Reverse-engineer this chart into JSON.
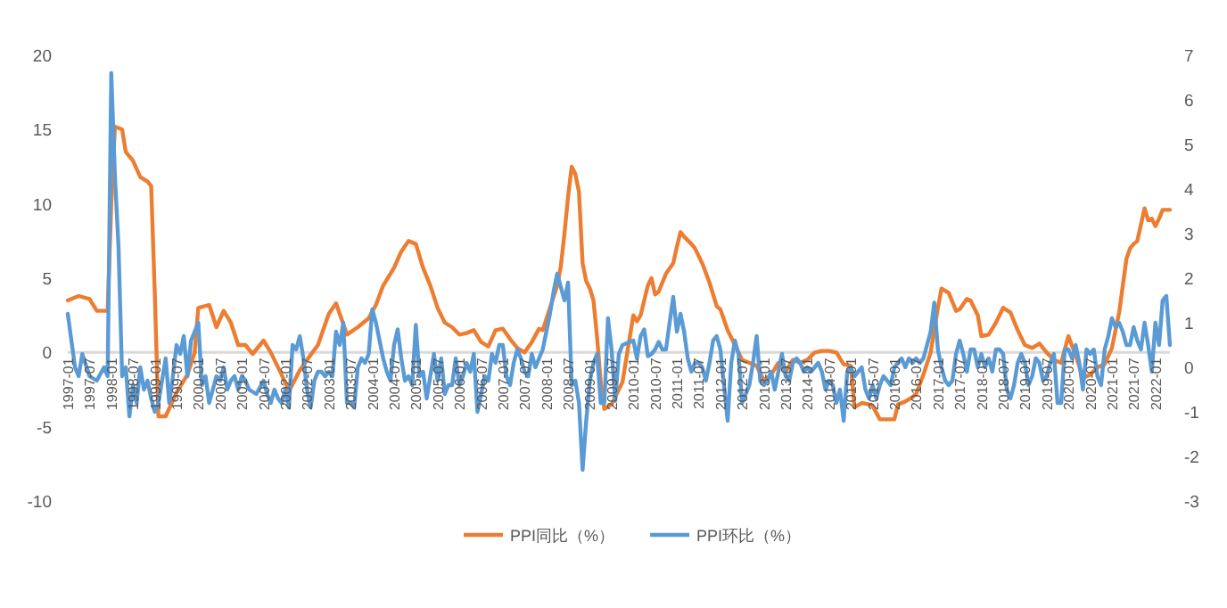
{
  "chart_data": {
    "type": "line",
    "xlim": [
      "1997-01",
      "2022-05"
    ],
    "xticks": [
      "1997-01",
      "1997-07",
      "1998-01",
      "1998-07",
      "1999-01",
      "1999-07",
      "2000-01",
      "2000-07",
      "2001-01",
      "2001-07",
      "2002-01",
      "2002-07",
      "2003-01",
      "2003-07",
      "2004-01",
      "2004-07",
      "2005-01",
      "2005-07",
      "2006-01",
      "2006-07",
      "2007-01",
      "2007-07",
      "2008-01",
      "2008-07",
      "2009-01",
      "2009-07",
      "2010-01",
      "2010-07",
      "2011-01",
      "2011-07",
      "2012-01",
      "2012-07",
      "2013-01",
      "2013-07",
      "2014-01",
      "2014-07",
      "2015-01",
      "2015-07",
      "2016-01",
      "2016-07",
      "2017-01",
      "2017-07",
      "2018-01",
      "2018-07",
      "2019-01",
      "2019-07",
      "2020-01",
      "2020-07",
      "2021-01",
      "2021-07",
      "2022-01"
    ],
    "ylim": [
      -10,
      20
    ],
    "yticks": [
      -10,
      -5,
      0,
      5,
      10,
      15,
      20
    ],
    "y2lim": [
      -3,
      7
    ],
    "y2ticks": [
      -3,
      -2,
      -1,
      0,
      1,
      2,
      3,
      4,
      5,
      6,
      7
    ],
    "grid": false,
    "legend": "bottom",
    "marker": "none",
    "line_style": "solid",
    "series": [
      {
        "name": "PPI同比（%）",
        "color": "#ed7d31",
        "x": [
          "1997-01",
          "1997-04",
          "1997-07",
          "1997-09",
          "1997-12",
          "1998-01",
          "1998-02",
          "1998-04",
          "1998-05",
          "1998-07",
          "1998-09",
          "1998-11",
          "1998-12",
          "1999-01",
          "1999-02",
          "1999-04",
          "1999-07",
          "1999-10",
          "1999-12",
          "2000-01",
          "2000-04",
          "2000-06",
          "2000-08",
          "2000-10",
          "2000-12",
          "2001-02",
          "2001-04",
          "2001-07",
          "2001-09",
          "2001-12",
          "2002-02",
          "2002-05",
          "2002-07",
          "2002-10",
          "2003-01",
          "2003-03",
          "2003-06",
          "2003-09",
          "2003-12",
          "2004-02",
          "2004-04",
          "2004-07",
          "2004-09",
          "2004-11",
          "2005-01",
          "2005-03",
          "2005-05",
          "2005-07",
          "2005-09",
          "2005-11",
          "2006-01",
          "2006-03",
          "2006-05",
          "2006-07",
          "2006-09",
          "2006-11",
          "2007-01",
          "2007-03",
          "2007-05",
          "2007-07",
          "2007-09",
          "2007-11",
          "2007-12",
          "2008-02",
          "2008-04",
          "2008-05",
          "2008-06",
          "2008-07",
          "2008-08",
          "2008-09",
          "2008-10",
          "2008-11",
          "2008-12",
          "2009-01",
          "2009-02",
          "2009-03",
          "2009-04",
          "2009-05",
          "2009-07",
          "2009-10",
          "2010-01",
          "2010-02",
          "2010-03",
          "2010-05",
          "2010-06",
          "2010-07",
          "2010-08",
          "2010-10",
          "2010-12",
          "2011-01",
          "2011-02",
          "2011-03",
          "2011-05",
          "2011-06",
          "2011-08",
          "2011-10",
          "2011-12",
          "2012-01",
          "2012-03",
          "2012-05",
          "2012-07",
          "2012-09",
          "2012-11",
          "2013-01",
          "2013-03",
          "2013-05",
          "2013-07",
          "2013-09",
          "2013-11",
          "2014-01",
          "2014-03",
          "2014-05",
          "2014-07",
          "2014-09",
          "2014-11",
          "2015-01",
          "2015-02",
          "2015-04",
          "2015-06",
          "2015-07",
          "2015-09",
          "2015-12",
          "2016-01",
          "2016-02",
          "2016-04",
          "2016-06",
          "2016-07",
          "2016-09",
          "2016-11",
          "2017-01",
          "2017-02",
          "2017-04",
          "2017-06",
          "2017-07",
          "2017-09",
          "2017-10",
          "2017-12",
          "2018-01",
          "2018-03",
          "2018-05",
          "2018-07",
          "2018-09",
          "2018-11",
          "2019-01",
          "2019-03",
          "2019-05",
          "2019-07",
          "2019-09",
          "2019-11",
          "2020-01",
          "2020-03",
          "2020-05",
          "2020-07",
          "2020-09",
          "2020-11",
          "2021-01",
          "2021-03",
          "2021-05",
          "2021-06",
          "2021-07",
          "2021-08",
          "2021-10",
          "2021-11",
          "2021-12",
          "2022-01",
          "2022-02",
          "2022-03",
          "2022-04",
          "2022-05"
        ],
        "values": [
          3.5,
          3.8,
          3.6,
          2.8,
          2.8,
          10,
          15.2,
          15.0,
          13.5,
          12.9,
          11.8,
          11.5,
          11.2,
          4,
          -4.3,
          -4.3,
          -2.7,
          -1.5,
          0,
          3.0,
          3.2,
          1.7,
          2.8,
          2.0,
          0.5,
          0.5,
          -0.1,
          0.8,
          0,
          -1.5,
          -2.6,
          -1.2,
          -0.5,
          0.5,
          2.6,
          3.3,
          1.2,
          1.7,
          2.3,
          3.2,
          4.5,
          5.7,
          6.8,
          7.5,
          7.3,
          5.7,
          4.5,
          3.0,
          2.0,
          1.7,
          1.2,
          1.3,
          1.5,
          0.7,
          0.4,
          1.5,
          1.6,
          0.9,
          0.3,
          0,
          0.7,
          1.6,
          1.5,
          3.0,
          4.5,
          5.8,
          8,
          10.5,
          12.5,
          12,
          10.8,
          6,
          4.8,
          4.3,
          3.5,
          1,
          -2,
          -3.8,
          -3.5,
          -2.0,
          2.5,
          2.1,
          2.5,
          4.5,
          5.0,
          3.9,
          4.1,
          5.3,
          6.0,
          7.1,
          8.1,
          7.8,
          7.3,
          7.0,
          6.0,
          4.7,
          3.1,
          2.9,
          1.5,
          0.5,
          -0.5,
          -0.7,
          -0.9,
          -1.9,
          -1.5,
          -0.7,
          -1.3,
          -0.5,
          -0.7,
          -0.5,
          0,
          0.1,
          0.1,
          0,
          -0.8,
          -0.9,
          -3.7,
          -3.4,
          -3.5,
          -3.6,
          -4.5,
          -4.5,
          -4.5,
          -3.5,
          -3.3,
          -3.0,
          -2.8,
          -1.5,
          0,
          3.0,
          4.3,
          4.0,
          2.8,
          2.9,
          3.6,
          3.5,
          2.5,
          1.1,
          1.2,
          2.0,
          3.0,
          2.7,
          1.5,
          0.5,
          0.3,
          0.6,
          0,
          -0.5,
          -0.7,
          1.1,
          -0.2,
          -1.7,
          -1.5,
          -1.0,
          -0.8,
          0.3,
          2.7,
          6.3,
          7.0,
          7.3,
          7.5,
          9.7,
          8.9,
          9.0,
          8.5,
          9.0,
          9.6,
          9.6,
          9.6
        ]
      },
      {
        "name": "PPI环比（%）",
        "color": "#5b9bd5",
        "axis": "y2",
        "x": [
          "1997-01",
          "1997-03",
          "1997-04",
          "1997-05",
          "1997-07",
          "1997-09",
          "1997-11",
          "1997-12",
          "1998-01",
          "1998-02",
          "1998-03",
          "1998-04",
          "1998-05",
          "1998-06",
          "1998-07",
          "1998-08",
          "1998-09",
          "1998-10",
          "1998-11",
          "1998-12",
          "1999-01",
          "1999-02",
          "1999-03",
          "1999-04",
          "1999-05",
          "1999-06",
          "1999-07",
          "1999-08",
          "1999-09",
          "1999-10",
          "1999-11",
          "2000-01",
          "2000-02",
          "2000-03",
          "2000-04",
          "2000-05",
          "2000-06",
          "2000-07",
          "2000-08",
          "2000-09",
          "2000-10",
          "2000-11",
          "2000-12",
          "2001-01",
          "2001-02",
          "2001-03",
          "2001-05",
          "2001-07",
          "2001-08",
          "2001-09",
          "2001-10",
          "2001-11",
          "2001-12",
          "2002-01",
          "2002-02",
          "2002-03",
          "2002-04",
          "2002-05",
          "2002-06",
          "2002-07",
          "2002-08",
          "2002-09",
          "2002-10",
          "2002-11",
          "2002-12",
          "2003-01",
          "2003-02",
          "2003-03",
          "2003-04",
          "2003-05",
          "2003-06",
          "2003-07",
          "2003-08",
          "2003-09",
          "2003-10",
          "2003-11",
          "2003-12",
          "2004-01",
          "2004-02",
          "2004-03",
          "2004-04",
          "2004-05",
          "2004-06",
          "2004-07",
          "2004-08",
          "2004-09",
          "2004-10",
          "2004-11",
          "2004-12",
          "2005-01",
          "2005-02",
          "2005-03",
          "2005-04",
          "2005-05",
          "2005-06",
          "2005-07",
          "2005-08",
          "2005-09",
          "2005-10",
          "2005-11",
          "2005-12",
          "2006-01",
          "2006-02",
          "2006-03",
          "2006-04",
          "2006-05",
          "2006-06",
          "2006-07",
          "2006-08",
          "2006-09",
          "2006-10",
          "2006-11",
          "2006-12",
          "2007-01",
          "2007-02",
          "2007-03",
          "2007-04",
          "2007-05",
          "2007-06",
          "2007-07",
          "2007-08",
          "2007-09",
          "2007-10",
          "2007-11",
          "2007-12",
          "2008-01",
          "2008-02",
          "2008-03",
          "2008-04",
          "2008-05",
          "2008-06",
          "2008-07",
          "2008-08",
          "2008-09",
          "2008-10",
          "2008-11",
          "2008-12",
          "2009-01",
          "2009-02",
          "2009-03",
          "2009-04",
          "2009-05",
          "2009-06",
          "2009-07",
          "2009-08",
          "2009-09",
          "2009-10",
          "2010-01",
          "2010-02",
          "2010-03",
          "2010-04",
          "2010-05",
          "2010-06",
          "2010-07",
          "2010-08",
          "2010-09",
          "2010-10",
          "2010-11",
          "2010-12",
          "2011-01",
          "2011-02",
          "2011-03",
          "2011-04",
          "2011-05",
          "2011-06",
          "2011-07",
          "2011-08",
          "2011-09",
          "2011-10",
          "2011-11",
          "2011-12",
          "2012-01",
          "2012-02",
          "2012-03",
          "2012-04",
          "2012-05",
          "2012-06",
          "2012-07",
          "2012-08",
          "2012-09",
          "2012-10",
          "2012-11",
          "2012-12",
          "2013-01",
          "2013-02",
          "2013-03",
          "2013-04",
          "2013-05",
          "2013-06",
          "2013-07",
          "2013-08",
          "2013-09",
          "2013-10",
          "2013-11",
          "2013-12",
          "2014-01",
          "2014-02",
          "2014-03",
          "2014-04",
          "2014-05",
          "2014-06",
          "2014-07",
          "2014-08",
          "2014-09",
          "2014-10",
          "2014-11",
          "2014-12",
          "2015-01",
          "2015-02",
          "2015-03",
          "2015-04",
          "2015-05",
          "2015-06",
          "2015-07",
          "2015-08",
          "2015-09",
          "2015-10",
          "2015-11",
          "2015-12",
          "2016-01",
          "2016-02",
          "2016-03",
          "2016-04",
          "2016-05",
          "2016-06",
          "2016-07",
          "2016-08",
          "2016-09",
          "2016-10",
          "2016-11",
          "2016-12",
          "2017-01",
          "2017-02",
          "2017-03",
          "2017-04",
          "2017-05",
          "2017-06",
          "2017-07",
          "2017-08",
          "2017-09",
          "2017-10",
          "2017-11",
          "2017-12",
          "2018-01",
          "2018-02",
          "2018-03",
          "2018-04",
          "2018-05",
          "2018-06",
          "2018-07",
          "2018-08",
          "2018-09",
          "2018-10",
          "2018-11",
          "2018-12",
          "2019-01",
          "2019-02",
          "2019-03",
          "2019-04",
          "2019-05",
          "2019-06",
          "2019-07",
          "2019-08",
          "2019-09",
          "2019-10",
          "2019-11",
          "2019-12",
          "2020-01",
          "2020-02",
          "2020-03",
          "2020-04",
          "2020-05",
          "2020-06",
          "2020-07",
          "2020-08",
          "2020-09",
          "2020-10",
          "2020-11",
          "2020-12",
          "2021-01",
          "2021-02",
          "2021-03",
          "2021-04",
          "2021-05",
          "2021-06",
          "2021-07",
          "2021-08",
          "2021-09",
          "2021-10",
          "2021-11",
          "2021-12",
          "2022-01",
          "2022-02",
          "2022-03",
          "2022-04",
          "2022-05"
        ],
        "values": [
          1.2,
          0,
          -0.2,
          0.3,
          -0.2,
          -0.3,
          0,
          -0.2,
          6.6,
          4.3,
          2.7,
          -0.2,
          0,
          -1.1,
          -0.4,
          -0.8,
          0,
          -0.5,
          -0.3,
          -0.7,
          -1.0,
          -0.8,
          -0.3,
          0.2,
          -0.8,
          -0.2,
          0.5,
          0.3,
          0.7,
          -0.2,
          0.6,
          1.0,
          -0.4,
          -0.2,
          -0.8,
          -0.5,
          -0.2,
          -0.3,
          0,
          -0.5,
          -0.3,
          -0.2,
          -0.5,
          -0.2,
          -0.3,
          -0.5,
          -0.6,
          -0.3,
          -0.6,
          -0.8,
          -0.5,
          -0.7,
          -0.8,
          -0.5,
          -0.9,
          0.5,
          0.4,
          0.7,
          0.2,
          -0.5,
          -0.9,
          -0.3,
          -0.1,
          -0.1,
          -0.2,
          -0.1,
          -0.2,
          0.8,
          0.5,
          1.0,
          -0.8,
          -0.8,
          -0.9,
          0,
          0.2,
          0.1,
          0.3,
          1.3,
          1.0,
          0.6,
          0.2,
          -0.1,
          -0.3,
          0.5,
          0.85,
          0.2,
          -0.3,
          -0.2,
          -0.4,
          0.95,
          -0.2,
          -0.1,
          -0.7,
          -0.2,
          0.3,
          -0.3,
          0.2,
          -0.6,
          -0.4,
          -0.4,
          0.2,
          -0.4,
          -0.2,
          0.1,
          -0.1,
          0.3,
          -1.0,
          -0.6,
          -0.2,
          -0.3,
          0.3,
          0.1,
          0.5,
          0.5,
          -0.2,
          -0.4,
          0.1,
          0.4,
          0.2,
          -0.1,
          -0.2,
          0.3,
          0,
          0.2,
          0.4,
          0.8,
          1.2,
          1.7,
          2.1,
          1.8,
          1.5,
          1.9,
          -0.4,
          -0.3,
          -0.8,
          -2.3,
          -1.2,
          -0.3,
          0.1,
          0.3,
          -0.8,
          -0.8,
          1.1,
          0.4,
          -0.75,
          0.3,
          0.5,
          0.6,
          0.2,
          0.7,
          0.85,
          0.25,
          0.3,
          0.4,
          0.57,
          0.4,
          0.4,
          1.0,
          1.58,
          0.8,
          1.2,
          0.8,
          0.2,
          -0.1,
          0.1,
          0.1,
          0,
          -0.3,
          0.1,
          0.6,
          0.7,
          0.4,
          -0.4,
          -1.2,
          0.1,
          0.6,
          0.3,
          -0.8,
          -0.6,
          -0.4,
          0.1,
          0.7,
          -0.3,
          -0.4,
          -0.3,
          -0.1,
          -0.5,
          -0.1,
          0.3,
          -0.2,
          -0.3,
          0.1,
          0.2,
          0.1,
          -0.1,
          0,
          -0.1,
          0,
          0.1,
          -0.1,
          -0.5,
          -0.3,
          -0.4,
          -0.8,
          -0.5,
          -1.2,
          -0.1,
          0,
          -0.2,
          -0.1,
          0,
          -0.5,
          -0.7,
          -0.4,
          -0.7,
          -0.4,
          -0.2,
          -0.3,
          -0.4,
          0,
          0.1,
          0.2,
          0,
          0.2,
          0.1,
          0.2,
          0.1,
          0.2,
          0.5,
          0.8,
          1.45,
          0.4,
          0,
          -0.3,
          -0.4,
          -0.3,
          0.3,
          0.6,
          0.3,
          -0.1,
          0.4,
          0.4,
          0,
          0.3,
          0,
          0.2,
          -0.1,
          0.4,
          0.4,
          0.3,
          -0.5,
          -0.7,
          -0.4,
          0.1,
          0.3,
          0.1,
          -0.4,
          -0.2,
          0.2,
          0.1,
          -0.3,
          -0.2,
          0.1,
          0.3,
          -0.8,
          -0.8,
          0.4,
          0.4,
          0.2,
          0.5,
          0.1,
          -0.5,
          0.4,
          0.3,
          0.4,
          -0.2,
          -0.4,
          0.4,
          0.7,
          1.1,
          0.9,
          1.0,
          0.8,
          0.5,
          0.5,
          0.9,
          0.6,
          0.4,
          1.0,
          0.5,
          -0.1,
          1.0,
          0.5,
          1.5,
          1.6,
          0.5
        ]
      }
    ]
  }
}
